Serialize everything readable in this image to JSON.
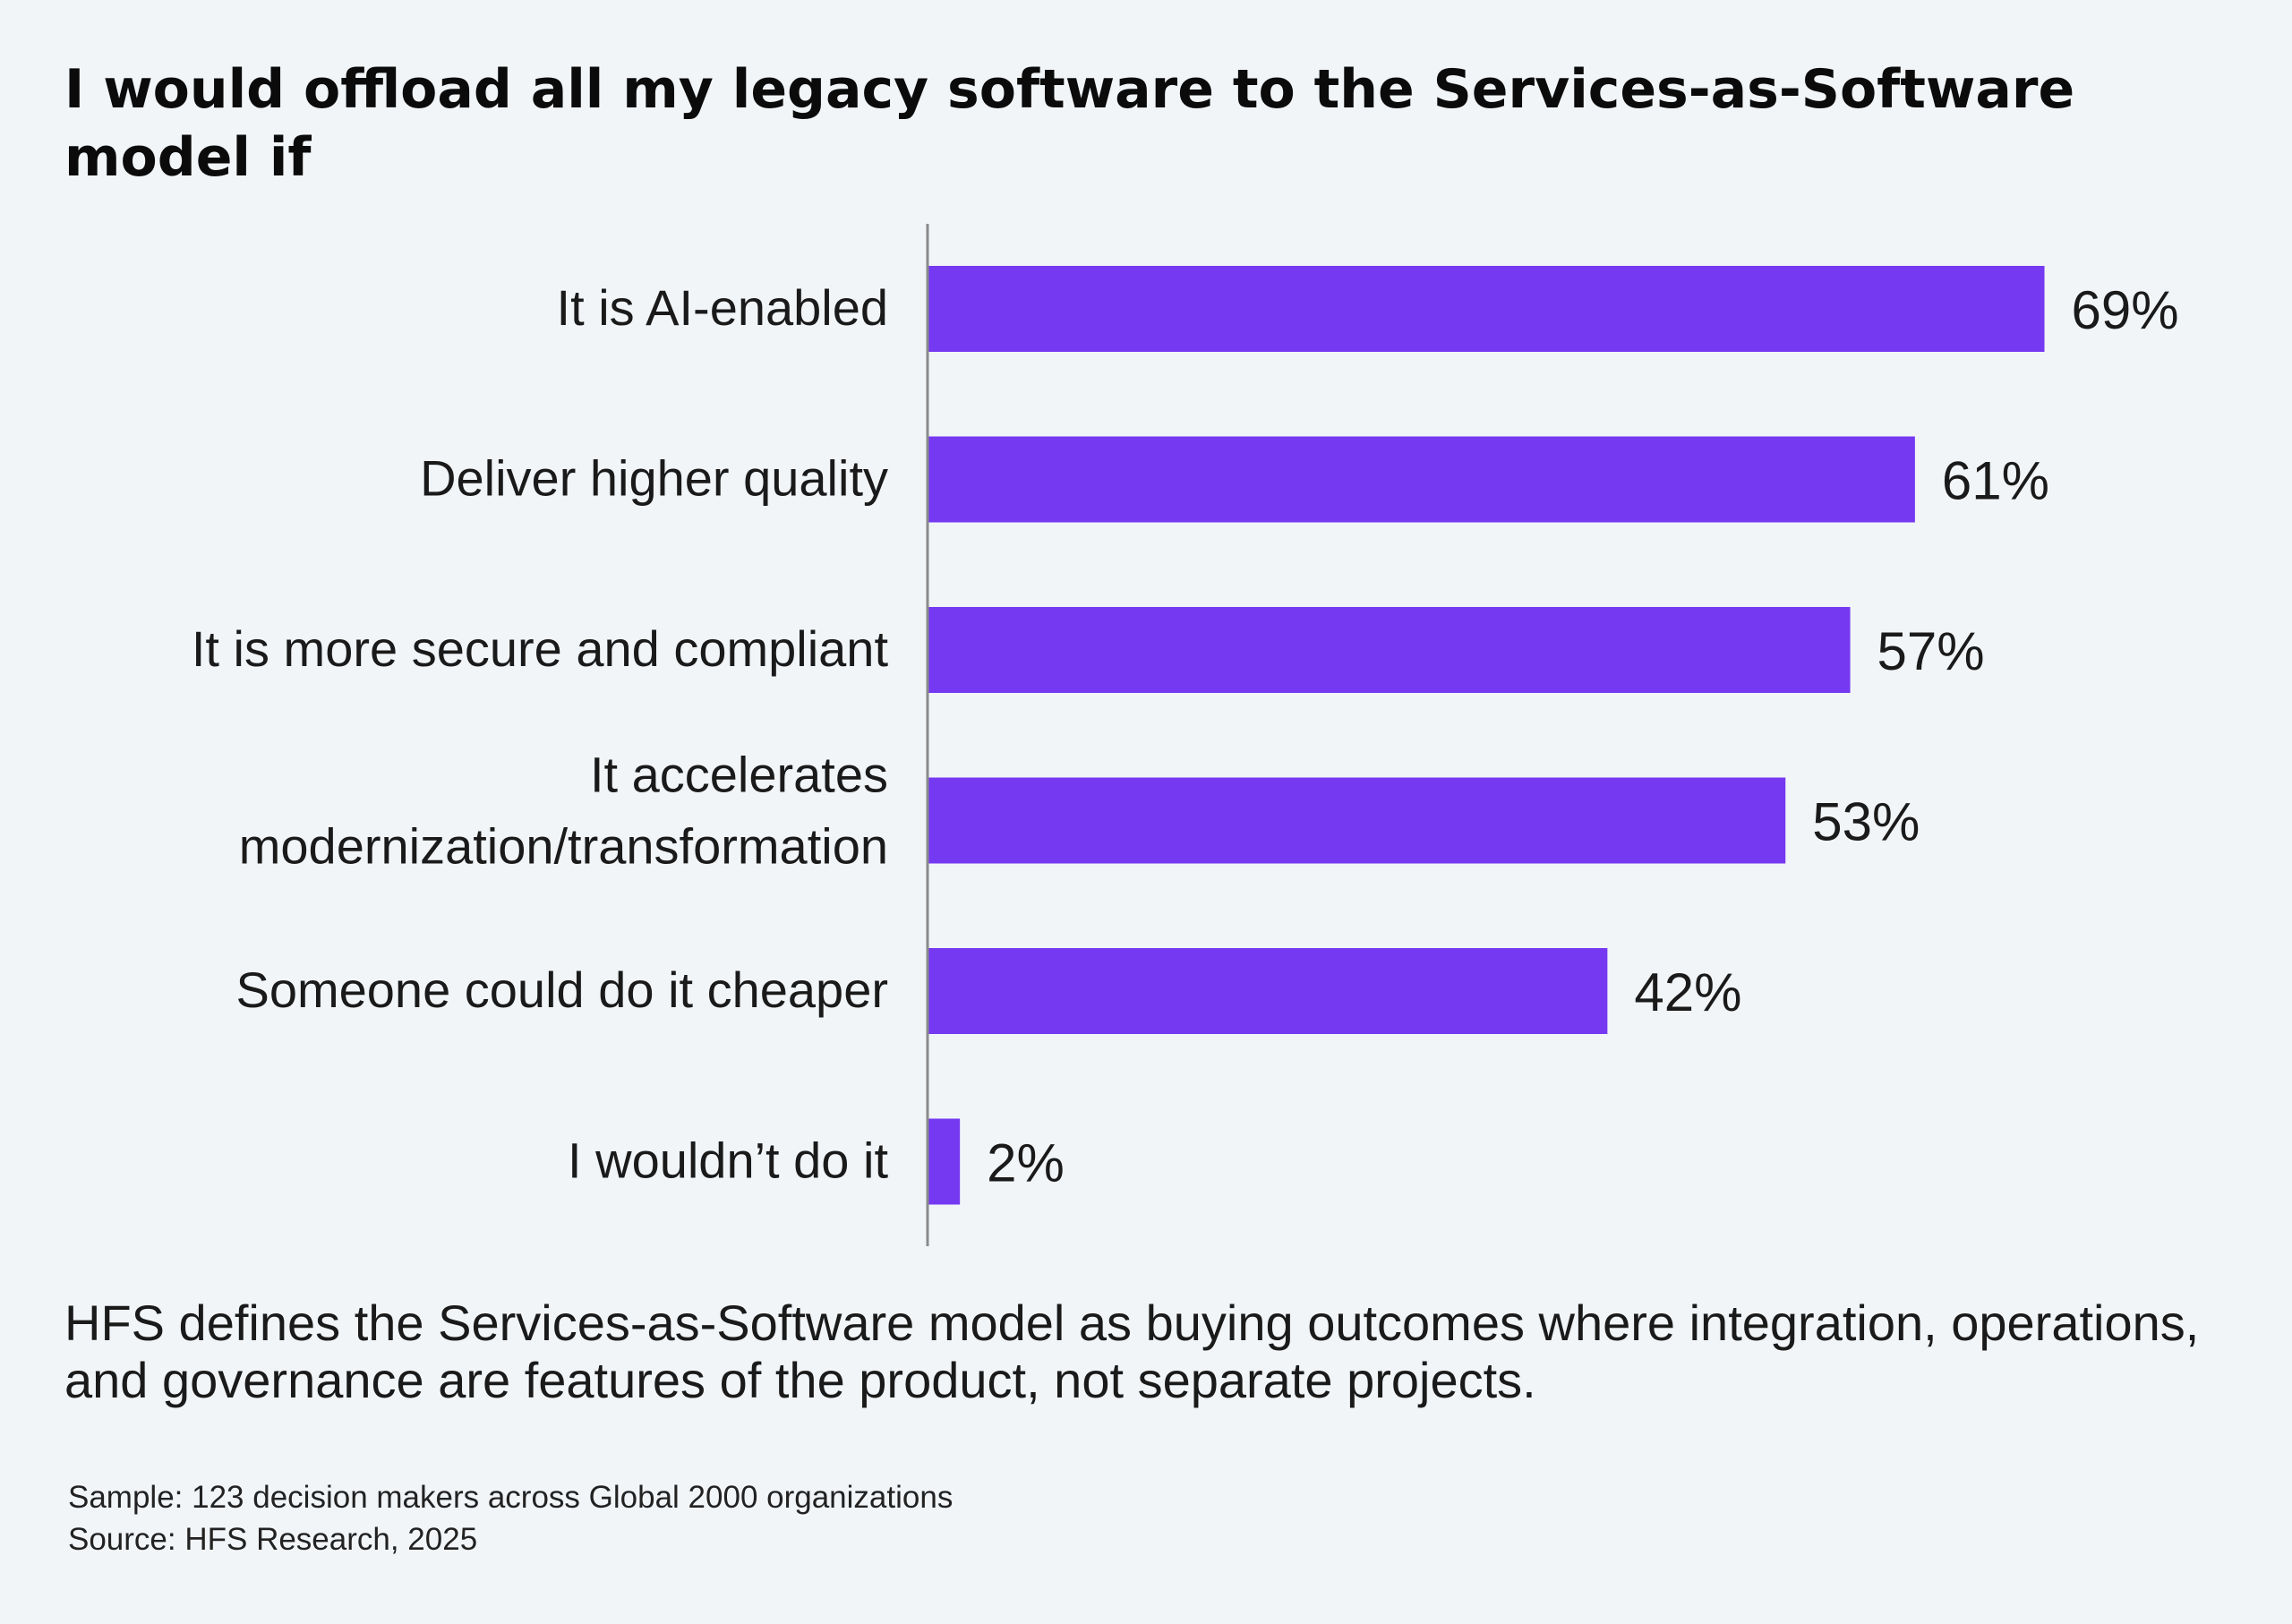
{
  "page": {
    "background": "#f2f5f8"
  },
  "title": "I would offload all my legacy software to the Services-as-Software model if",
  "definition": "HFS defines the Services-as-Software model as buying outcomes where integration, operations, and governance are features of the product, not separate projects.",
  "footnotes": {
    "sample": "Sample: 123 decision makers across Global 2000 organizations",
    "source": "Source: HFS Research, 2025"
  },
  "chart_data": {
    "type": "bar",
    "orientation": "horizontal",
    "title": "I would offload all my legacy software to the Services-as-Software model if",
    "categories": [
      [
        "It is AI-enabled"
      ],
      [
        "Deliver higher quality"
      ],
      [
        "It is more secure and compliant"
      ],
      [
        "It accelerates",
        "modernization/transformation"
      ],
      [
        "Someone could do it cheaper"
      ],
      [
        "I wouldn’t do it"
      ]
    ],
    "values": [
      69,
      61,
      57,
      53,
      42,
      2
    ],
    "value_labels": [
      "69%",
      "61%",
      "57%",
      "53%",
      "42%",
      "2%"
    ],
    "unit": "%",
    "xlim": [
      0,
      100
    ],
    "bar_color": "#7539f2",
    "axis_color": "#8a8a8a",
    "grid": false,
    "legend": "none",
    "xlabel": "",
    "ylabel": ""
  }
}
